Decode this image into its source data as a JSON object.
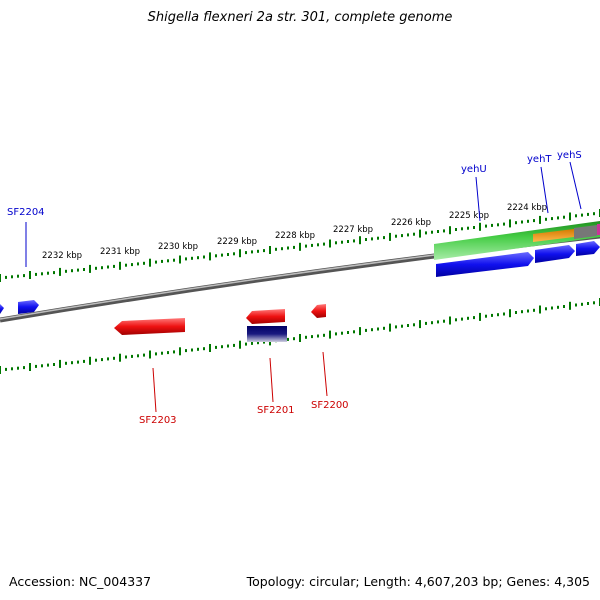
{
  "title": "Shigella flexneri 2a str. 301, complete genome",
  "footer": {
    "accession": "Accession: NC_004337",
    "stats": "Topology: circular; Length: 4,607,203 bp; Genes: 4,305"
  },
  "ticks": [
    "2232 kbp",
    "2231 kbp",
    "2230 kbp",
    "2229 kbp",
    "2228 kbp",
    "2227 kbp",
    "2226 kbp",
    "2225 kbp",
    "2224 kbp"
  ],
  "gene_labels": {
    "forward": [
      "SF2204",
      "yehU",
      "yehT",
      "yehS"
    ],
    "reverse": [
      "SF2203",
      "SF2201",
      "SF2200"
    ]
  },
  "colors": {
    "forward_label": "#0000cc",
    "reverse_label": "#cc0000",
    "cds_forward": "#1010ee",
    "cds_reverse": "#ee1111",
    "gene_green": "#44cc44",
    "gene_orange": "#ff9900",
    "backbone": "#808080",
    "tick": "#007700"
  }
}
